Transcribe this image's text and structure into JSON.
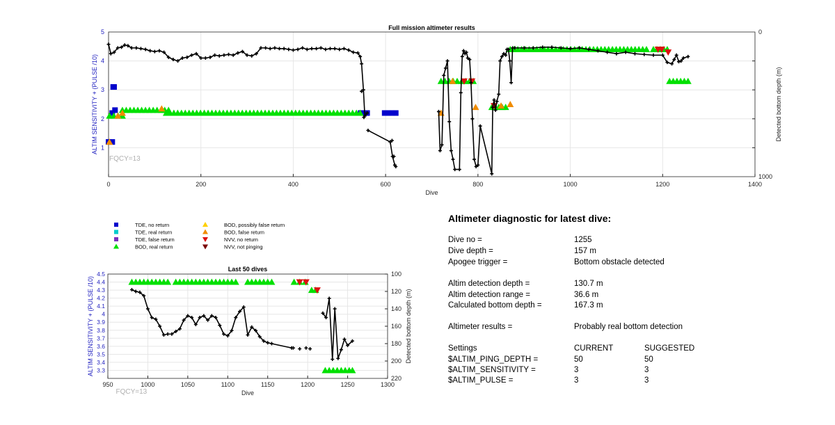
{
  "chart_data": [
    {
      "type": "scatter",
      "title": "Full mission altimeter results",
      "xlabel": "Dive",
      "ylabel": "ALTIM SENSITIVITY + (PULSE /10)",
      "y2label": "Detected bottom depth (m)",
      "xlim": [
        0,
        1400
      ],
      "ylim": [
        0,
        5
      ],
      "y2lim": [
        1000,
        0
      ],
      "xticks": [
        "0",
        "200",
        "400",
        "600",
        "800",
        "1000",
        "1200",
        "1400"
      ],
      "yticks": [
        "1",
        "2",
        "3",
        "4",
        "5"
      ],
      "y2ticks": [
        "0",
        "",
        "",
        "",
        "",
        "1000"
      ],
      "grid": true,
      "annotation": "FQCY=13",
      "series": [
        {
          "name": "TDE, no return",
          "color": "#0000cc",
          "marker": "square",
          "segments": [
            {
              "x": [
                0,
                8
              ],
              "y": [
                1.2,
                1.2
              ]
            },
            {
              "x": [
                8,
                14
              ],
              "y": [
                2.2,
                2.3
              ]
            },
            {
              "x": [
                10,
                12
              ],
              "y": [
                3.1,
                3.1
              ]
            },
            {
              "x": [
                546,
                560
              ],
              "y": [
                2.2,
                2.2
              ]
            },
            {
              "x": [
                598,
                622
              ],
              "y": [
                2.2,
                2.2
              ]
            }
          ],
          "points": []
        },
        {
          "name": "TDE, real return",
          "color": "#00cccc",
          "marker": "square",
          "segments": [],
          "points": []
        },
        {
          "name": "TDE, false return",
          "color": "#7a2fbf",
          "marker": "square",
          "segments": [],
          "points": []
        },
        {
          "name": "BOD, real return",
          "color": "#00e000",
          "marker": "triangle-up",
          "segments": [
            {
              "x": [
                2,
                30
              ],
              "y": [
                2.1,
                2.1
              ]
            },
            {
              "x": [
                30,
                130
              ],
              "y": [
                2.3,
                2.3
              ]
            },
            {
              "x": [
                125,
                545
              ],
              "y": [
                2.2,
                2.2
              ]
            },
            {
              "x": [
                720,
                755
              ],
              "y": [
                3.3,
                3.3
              ]
            },
            {
              "x": [
                765,
                790
              ],
              "y": [
                3.3,
                3.3
              ]
            },
            {
              "x": [
                830,
                860
              ],
              "y": [
                2.4,
                2.4
              ]
            },
            {
              "x": [
                870,
                1165
              ],
              "y": [
                4.4,
                4.4
              ]
            },
            {
              "x": [
                1180,
                1210
              ],
              "y": [
                4.4,
                4.4
              ]
            },
            {
              "x": [
                1215,
                1255
              ],
              "y": [
                3.3,
                3.3
              ]
            }
          ],
          "points": []
        },
        {
          "name": "BOD, possibly false return",
          "color": "#ffd000",
          "marker": "triangle-up",
          "segments": [],
          "points": []
        },
        {
          "name": "BOD, false return",
          "color": "#f08c00",
          "marker": "triangle-up",
          "segments": [],
          "points": [
            [
              2,
              1.2
            ],
            [
              20,
              2.1
            ],
            [
              30,
              2.2
            ],
            [
              115,
              2.35
            ],
            [
              720,
              2.2
            ],
            [
              745,
              3.3
            ],
            [
              795,
              2.4
            ],
            [
              850,
              2.45
            ],
            [
              870,
              2.5
            ]
          ]
        },
        {
          "name": "NVV, no return",
          "color": "#dd1111",
          "marker": "triangle-down",
          "segments": [],
          "points": [
            [
              770,
              3.3
            ],
            [
              787,
              3.3
            ],
            [
              835,
              2.45
            ],
            [
              1190,
              4.4
            ],
            [
              1198,
              4.4
            ],
            [
              1212,
              4.3
            ]
          ]
        },
        {
          "name": "NVV, not pinging",
          "color": "#7a0000",
          "marker": "triangle-down",
          "segments": [],
          "points": []
        },
        {
          "name": "Detected bottom depth",
          "color": "#000000",
          "marker": "plus",
          "axis": "right",
          "x": [
            0,
            5,
            12,
            20,
            28,
            35,
            42,
            50,
            60,
            70,
            80,
            90,
            100,
            110,
            120,
            130,
            140,
            150,
            160,
            170,
            180,
            190,
            200,
            210,
            220,
            230,
            240,
            250,
            260,
            270,
            280,
            290,
            300,
            310,
            320,
            330,
            340,
            350,
            360,
            370,
            380,
            390,
            400,
            410,
            420,
            430,
            440,
            450,
            460,
            470,
            480,
            490,
            500,
            510,
            520,
            530,
            540,
            545,
            548,
            552,
            555,
            560,
            562,
            610,
            615,
            620,
            715,
            718,
            722,
            726,
            730,
            734,
            738,
            742,
            746,
            750,
            760,
            763,
            766,
            769,
            772,
            775,
            778,
            782,
            785,
            788,
            792,
            796,
            800,
            805,
            830,
            832,
            835,
            838,
            841,
            845,
            848,
            852,
            856,
            860,
            863,
            866,
            869,
            872,
            875,
            880,
            900,
            920,
            940,
            960,
            980,
            1000,
            1020,
            1040,
            1060,
            1080,
            1100,
            1120,
            1140,
            1160,
            1180,
            1200,
            1210,
            1220,
            1225,
            1230,
            1235,
            1240,
            1245,
            1255
          ],
          "y": [
            85,
            150,
            140,
            110,
            105,
            90,
            95,
            110,
            110,
            115,
            120,
            130,
            135,
            130,
            140,
            175,
            190,
            200,
            180,
            175,
            160,
            150,
            180,
            180,
            175,
            160,
            165,
            160,
            155,
            160,
            145,
            135,
            160,
            165,
            150,
            110,
            110,
            115,
            110,
            115,
            115,
            120,
            125,
            120,
            110,
            120,
            115,
            115,
            110,
            120,
            115,
            115,
            120,
            115,
            125,
            140,
            145,
            170,
            220,
            400,
            580,
            560,
            680,
            760,
            860,
            920,
            550,
            820,
            780,
            300,
            250,
            200,
            620,
            820,
            880,
            950,
            950,
            420,
            170,
            130,
            150,
            140,
            180,
            190,
            350,
            600,
            880,
            930,
            920,
            650,
            980,
            520,
            470,
            540,
            480,
            430,
            200,
            170,
            150,
            160,
            120,
            120,
            200,
            350,
            110,
            110,
            110,
            110,
            105,
            105,
            110,
            115,
            110,
            120,
            130,
            140,
            150,
            140,
            150,
            155,
            160,
            160,
            210,
            220,
            190,
            160,
            205,
            200,
            180,
            170
          ],
          "points": [
            [
              548,
              410
            ],
            [
              553,
              590
            ],
            [
              614,
              750
            ],
            [
              618,
              860
            ],
            [
              622,
              930
            ]
          ]
        }
      ]
    },
    {
      "type": "scatter",
      "title": "Last 50 dives",
      "xlabel": "Dive",
      "ylabel": "ALTIM SENSITIVITY + (PULSE /10)",
      "y2label": "Detected bottom depth (m)",
      "xlim": [
        950,
        1300
      ],
      "ylim": [
        3.2,
        4.5
      ],
      "y2lim": [
        220,
        100
      ],
      "xticks": [
        "950",
        "1000",
        "1050",
        "1100",
        "1150",
        "1200",
        "1250",
        "1300"
      ],
      "yticks": [
        "3.3",
        "3.4",
        "3.5",
        "3.6",
        "3.7",
        "3.8",
        "3.9",
        "4",
        "4.1",
        "4.2",
        "4.3",
        "4.4",
        "4.5"
      ],
      "y2ticks": [
        "100",
        "120",
        "140",
        "160",
        "180",
        "200",
        "220"
      ],
      "grid": true,
      "annotation": "FQCY=13",
      "bod_real": {
        "x": [
          980,
          985,
          990,
          995,
          1000,
          1005,
          1010,
          1015,
          1020,
          1025,
          1035,
          1040,
          1045,
          1050,
          1055,
          1060,
          1065,
          1070,
          1075,
          1080,
          1085,
          1090,
          1095,
          1100,
          1105,
          1110,
          1125,
          1130,
          1135,
          1140,
          1145,
          1150,
          1155,
          1183,
          1190,
          1197,
          1205,
          1210,
          1222,
          1227,
          1232,
          1237,
          1242,
          1247,
          1252,
          1256
        ],
        "y": [
          4.4,
          4.4,
          4.4,
          4.4,
          4.4,
          4.4,
          4.4,
          4.4,
          4.4,
          4.4,
          4.4,
          4.4,
          4.4,
          4.4,
          4.4,
          4.4,
          4.4,
          4.4,
          4.4,
          4.4,
          4.4,
          4.4,
          4.4,
          4.4,
          4.4,
          4.4,
          4.4,
          4.4,
          4.4,
          4.4,
          4.4,
          4.4,
          4.4,
          4.4,
          4.4,
          4.4,
          4.3,
          4.3,
          3.3,
          3.3,
          3.3,
          3.3,
          3.3,
          3.3,
          3.3,
          3.3
        ]
      },
      "nvv_no_return": {
        "x": [
          1190,
          1198,
          1212
        ],
        "y": [
          4.4,
          4.4,
          4.3
        ]
      },
      "depth": {
        "x": [
          980,
          985,
          990,
          995,
          1000,
          1005,
          1010,
          1015,
          1020,
          1025,
          1030,
          1035,
          1040,
          1045,
          1050,
          1055,
          1060,
          1065,
          1070,
          1075,
          1080,
          1085,
          1090,
          1095,
          1100,
          1105,
          1110,
          1115,
          1120,
          1125,
          1130,
          1135,
          1140,
          1145,
          1150,
          1155,
          1180,
          1182
        ],
        "y": [
          118,
          120,
          121,
          125,
          140,
          150,
          152,
          160,
          170,
          169,
          169,
          166,
          163,
          153,
          148,
          150,
          158,
          150,
          148,
          153,
          148,
          150,
          159,
          169,
          171,
          165,
          150,
          143,
          138,
          170,
          161,
          165,
          172,
          177,
          179,
          180,
          185,
          185
        ],
        "x2": [
          1219,
          1223,
          1227,
          1231,
          1234,
          1238,
          1242,
          1246,
          1250,
          1256
        ],
        "y2": [
          145,
          150,
          128,
          198,
          140,
          197,
          187,
          175,
          182,
          177
        ],
        "points": [
          [
            1190,
            186
          ],
          [
            1198,
            185
          ],
          [
            1203,
            186
          ]
        ]
      }
    }
  ],
  "legend": [
    {
      "label": "TDE, no return",
      "color": "#0000cc",
      "marker": "square"
    },
    {
      "label": "TDE, real return",
      "color": "#00cccc",
      "marker": "square"
    },
    {
      "label": "TDE, false return",
      "color": "#7a2fbf",
      "marker": "square"
    },
    {
      "label": "BOD, real return",
      "color": "#00e000",
      "marker": "triangle-up"
    },
    {
      "label": "BOD, possibly false return",
      "color": "#ffd000",
      "marker": "triangle-up"
    },
    {
      "label": "BOD, false return",
      "color": "#f08c00",
      "marker": "triangle-up"
    },
    {
      "label": "NVV, no return",
      "color": "#dd1111",
      "marker": "triangle-down"
    },
    {
      "label": "NVV, not pinging",
      "color": "#7a0000",
      "marker": "triangle-down"
    }
  ],
  "diagnostic": {
    "title": "Altimeter diagnostic for latest dive:",
    "dive_no_label": "Dive no =",
    "dive_no": "1255",
    "dive_depth_label": "Dive depth =",
    "dive_depth": "157 m",
    "apogee_label": "Apogee trigger =",
    "apogee": "Bottom obstacle detected",
    "altim_depth_label": "Altim detection depth =",
    "altim_depth": "130.7 m",
    "altim_range_label": "Altim detection range =",
    "altim_range": "36.6 m",
    "calc_bottom_label": "Calculated bottom depth =",
    "calc_bottom": "167.3 m",
    "results_label": "Altimeter results =",
    "results": "Probably real bottom detection",
    "settings_label": "Settings",
    "current_label": "CURRENT",
    "suggested_label": "SUGGESTED",
    "ping_depth_label": "$ALTIM_PING_DEPTH =",
    "ping_depth_current": "50",
    "ping_depth_suggested": "50",
    "sensitivity_label": "$ALTIM_SENSITIVITY =",
    "sensitivity_current": "3",
    "sensitivity_suggested": "3",
    "pulse_label": "$ALTIM_PULSE =",
    "pulse_current": "3",
    "pulse_suggested": "3"
  },
  "colors": {
    "left_axis": "#1f1fbf",
    "grid": "#e6e6e6",
    "annotation": "#b0b0b0",
    "axis": "#262626"
  }
}
